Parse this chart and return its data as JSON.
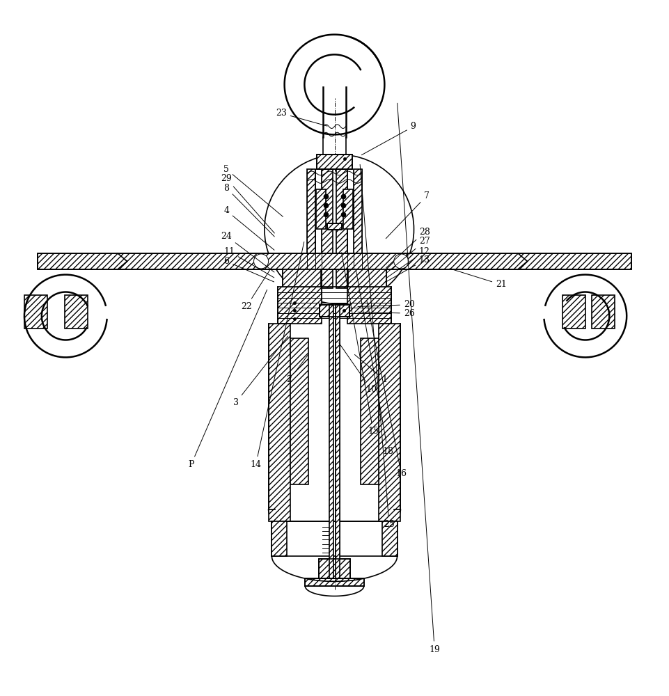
{
  "bg_color": "#ffffff",
  "line_color": "#000000",
  "fig_width": 9.61,
  "fig_height": 10.0
}
